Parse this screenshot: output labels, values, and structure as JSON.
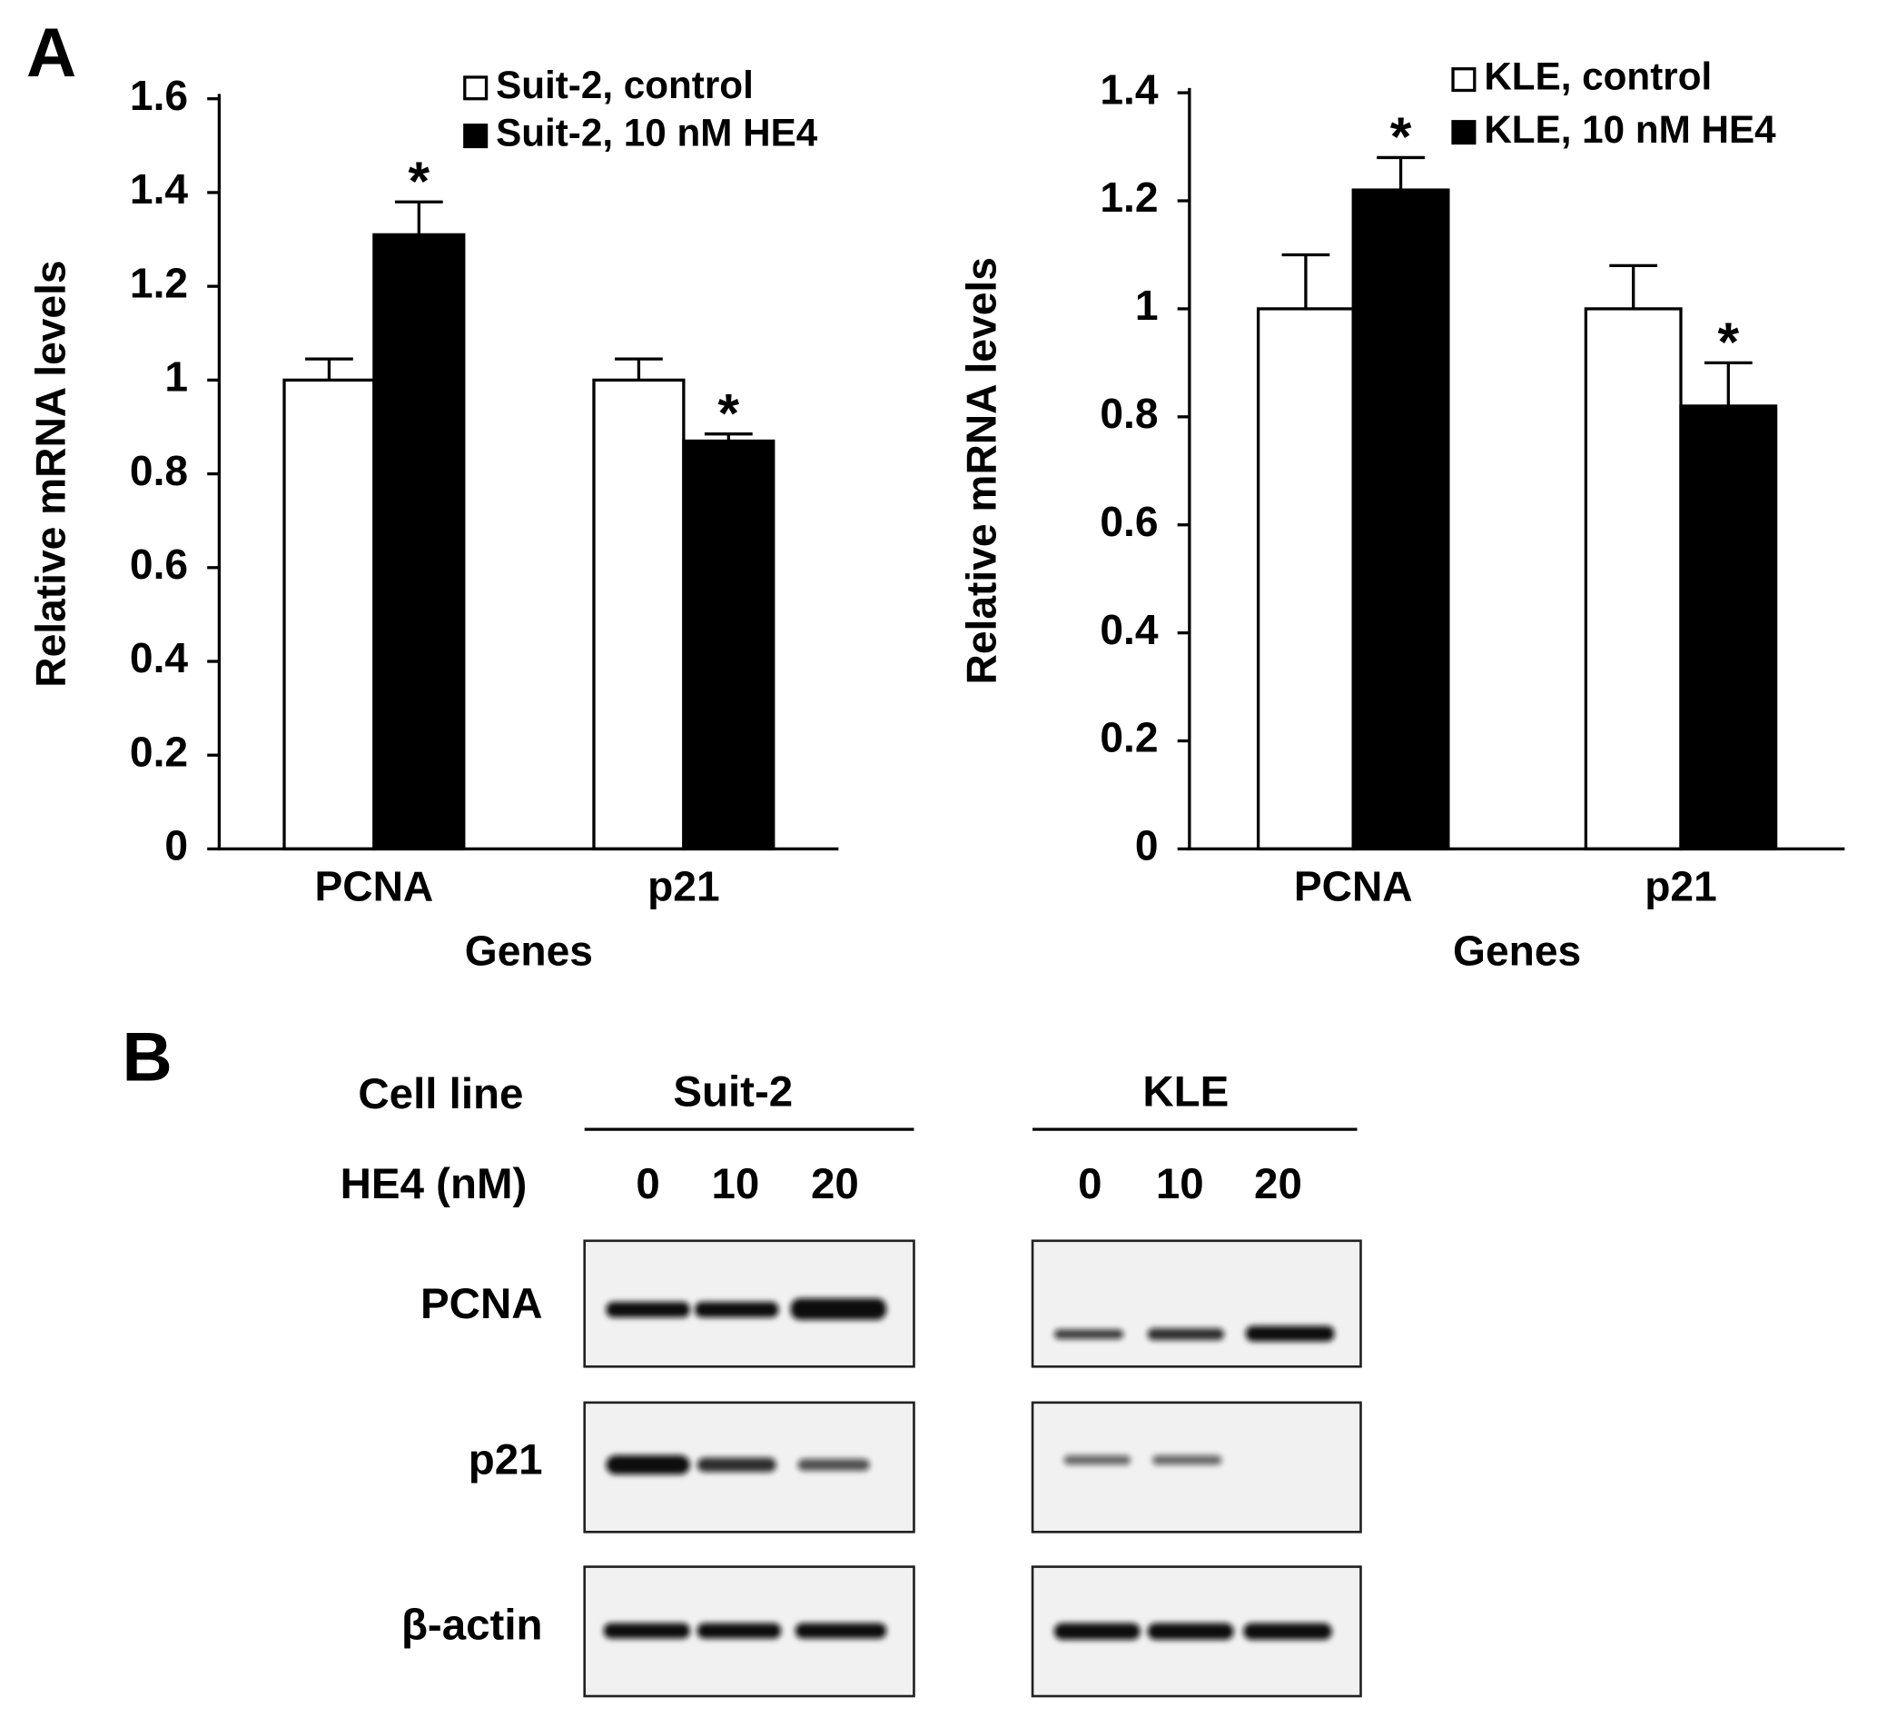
{
  "panel_labels": [
    "A",
    "B"
  ],
  "chart_data": [
    {
      "type": "bar",
      "xlabel": "Genes",
      "ylabel": "Relative mRNA levels",
      "categories": [
        "PCNA",
        "p21"
      ],
      "series": [
        {
          "name": "Suit-2, control",
          "color": "#ffffff",
          "values": [
            1,
            1
          ],
          "errors": [
            0.045,
            0.045
          ]
        },
        {
          "name": "Suit-2, 10 nM HE4",
          "color": "#000000",
          "values": [
            1.31,
            0.87
          ],
          "errors": [
            0.07,
            0.015
          ],
          "significance": [
            "*",
            "*"
          ]
        }
      ],
      "ylim": [
        0,
        1.6
      ],
      "yticks": [
        0,
        0.2,
        0.4,
        0.6,
        0.8,
        1,
        1.2,
        1.4,
        1.6
      ],
      "legend": "upper right"
    },
    {
      "type": "bar",
      "xlabel": "Genes",
      "ylabel": "Relative mRNA levels",
      "categories": [
        "PCNA",
        "p21"
      ],
      "series": [
        {
          "name": "KLE, control",
          "color": "#ffffff",
          "values": [
            1,
            1
          ],
          "errors": [
            0.1,
            0.08
          ]
        },
        {
          "name": "KLE, 10 nM HE4",
          "color": "#000000",
          "values": [
            1.22,
            0.82
          ],
          "errors": [
            0.06,
            0.08
          ],
          "significance": [
            "*",
            "*"
          ]
        }
      ],
      "ylim": [
        0,
        1.4
      ],
      "yticks": [
        0,
        0.2,
        0.4,
        0.6,
        0.8,
        1,
        1.2,
        1.4
      ],
      "legend": "upper right"
    }
  ],
  "western_blot": {
    "cell_line_label": "Cell line",
    "treatment_label": "HE4 (nM)",
    "groups": [
      {
        "name": "Suit-2",
        "doses": [
          0,
          10,
          20
        ]
      },
      {
        "name": "KLE",
        "doses": [
          0,
          10,
          20
        ]
      }
    ],
    "proteins": [
      "PCNA",
      "p21",
      "β-actin"
    ]
  }
}
